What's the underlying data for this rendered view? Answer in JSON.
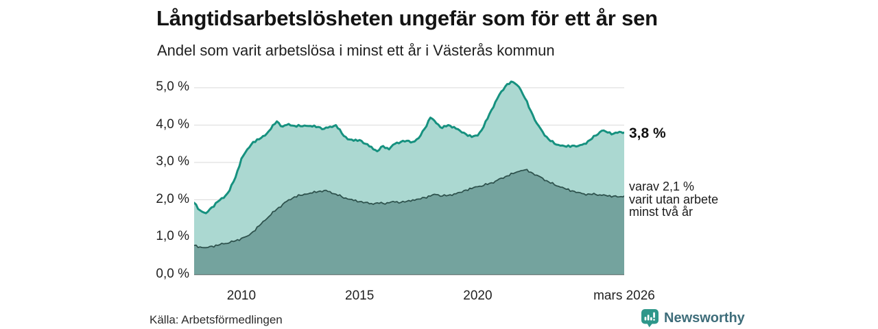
{
  "header": {
    "title": "Långtidsarbetslösheten ungefär som för ett år sen",
    "subtitle": "Andel som varit arbetslösa i minst ett år i Västerås kommun"
  },
  "annotations": {
    "total_end_label": "3,8 %",
    "secondary_lines": [
      "varav 2,1 %",
      "varit utan arbete",
      "minst två år"
    ]
  },
  "source_label": "Källa: Arbetsförmedlingen",
  "branding": {
    "name": "Newsworthy",
    "icon": "newsworthy-chart-bubble-icon",
    "icon_color": "#2e978a",
    "text_color": "#3e6d7a"
  },
  "colors": {
    "total_line": "#16917f",
    "total_fill": "#abd8d1",
    "secondary_line": "#2e524d",
    "secondary_fill": "#74a39e",
    "gridline": "#dadada",
    "baseline": "#4d4d4d"
  },
  "chart_data": {
    "type": "area",
    "title": "Långtidsarbetslösheten ungefär som för ett år sen",
    "subtitle": "Andel som varit arbetslösa i minst ett år i Västerås kommun",
    "ylabel": "",
    "xlabel": "",
    "ylim": [
      0,
      5.35
    ],
    "x_range": [
      2008.0,
      2026.2
    ],
    "grid": true,
    "legend_position": "right-edge-annotations",
    "y_ticks": [
      {
        "label": "0,0 %",
        "value": 0
      },
      {
        "label": "1,0 %",
        "value": 1
      },
      {
        "label": "2,0 %",
        "value": 2
      },
      {
        "label": "3,0 %",
        "value": 3
      },
      {
        "label": "4,0 %",
        "value": 4
      },
      {
        "label": "5,0 %",
        "value": 5
      }
    ],
    "x_ticks": [
      {
        "label": "2010",
        "t": 2010
      },
      {
        "label": "2015",
        "t": 2015
      },
      {
        "label": "2020",
        "t": 2020
      },
      {
        "label": "mars 2026",
        "t": 2026.2
      }
    ],
    "x": [
      2008.0,
      2008.25,
      2008.5,
      2008.75,
      2009.0,
      2009.25,
      2009.5,
      2009.75,
      2010.0,
      2010.25,
      2010.5,
      2010.75,
      2011.0,
      2011.25,
      2011.5,
      2011.75,
      2012.0,
      2012.25,
      2012.5,
      2012.75,
      2013.0,
      2013.25,
      2013.5,
      2013.75,
      2014.0,
      2014.25,
      2014.5,
      2014.75,
      2015.0,
      2015.25,
      2015.5,
      2015.75,
      2016.0,
      2016.25,
      2016.5,
      2016.75,
      2017.0,
      2017.25,
      2017.5,
      2017.75,
      2018.0,
      2018.25,
      2018.5,
      2018.75,
      2019.0,
      2019.25,
      2019.5,
      2019.75,
      2020.0,
      2020.25,
      2020.5,
      2020.75,
      2021.0,
      2021.25,
      2021.5,
      2021.75,
      2022.0,
      2022.25,
      2022.5,
      2022.75,
      2023.0,
      2023.25,
      2023.5,
      2023.75,
      2024.0,
      2024.25,
      2024.5,
      2024.75,
      2025.0,
      2025.25,
      2025.5,
      2025.75,
      2026.0,
      2026.2
    ],
    "series": [
      {
        "name": "Arbetslösa minst ett år (andel)",
        "end_value": 3.8,
        "end_label": "3,8 %",
        "line_color": "#16917f",
        "fill_color": "#abd8d1",
        "values": [
          1.92,
          1.72,
          1.64,
          1.8,
          1.95,
          2.05,
          2.25,
          2.6,
          3.1,
          3.35,
          3.55,
          3.62,
          3.72,
          3.9,
          4.1,
          3.96,
          4.03,
          3.98,
          3.97,
          3.98,
          3.96,
          3.95,
          3.9,
          3.96,
          4.0,
          3.78,
          3.62,
          3.58,
          3.6,
          3.5,
          3.42,
          3.3,
          3.44,
          3.35,
          3.5,
          3.55,
          3.58,
          3.55,
          3.65,
          3.9,
          4.2,
          4.05,
          3.92,
          4.0,
          3.95,
          3.85,
          3.76,
          3.68,
          3.72,
          3.95,
          4.3,
          4.62,
          4.9,
          5.1,
          5.15,
          5.02,
          4.72,
          4.38,
          4.05,
          3.82,
          3.62,
          3.5,
          3.45,
          3.42,
          3.45,
          3.44,
          3.5,
          3.6,
          3.72,
          3.85,
          3.8,
          3.77,
          3.82,
          3.8
        ]
      },
      {
        "name": "varav utan arbete minst två år (andel)",
        "end_value": 2.1,
        "end_label": "varav 2,1 % varit utan arbete minst två år",
        "line_color": "#2e524d",
        "fill_color": "#74a39e",
        "values": [
          0.78,
          0.74,
          0.72,
          0.76,
          0.78,
          0.82,
          0.85,
          0.9,
          0.97,
          1.03,
          1.15,
          1.3,
          1.45,
          1.6,
          1.75,
          1.88,
          2.0,
          2.08,
          2.12,
          2.15,
          2.18,
          2.22,
          2.25,
          2.22,
          2.15,
          2.08,
          2.02,
          1.98,
          1.95,
          1.93,
          1.9,
          1.92,
          1.9,
          1.92,
          1.94,
          1.93,
          1.96,
          2.0,
          2.02,
          2.06,
          2.1,
          2.14,
          2.1,
          2.12,
          2.16,
          2.2,
          2.26,
          2.3,
          2.35,
          2.38,
          2.44,
          2.5,
          2.58,
          2.64,
          2.7,
          2.76,
          2.8,
          2.74,
          2.66,
          2.58,
          2.48,
          2.4,
          2.34,
          2.28,
          2.24,
          2.2,
          2.16,
          2.15,
          2.14,
          2.12,
          2.1,
          2.1,
          2.08,
          2.1
        ]
      }
    ]
  }
}
